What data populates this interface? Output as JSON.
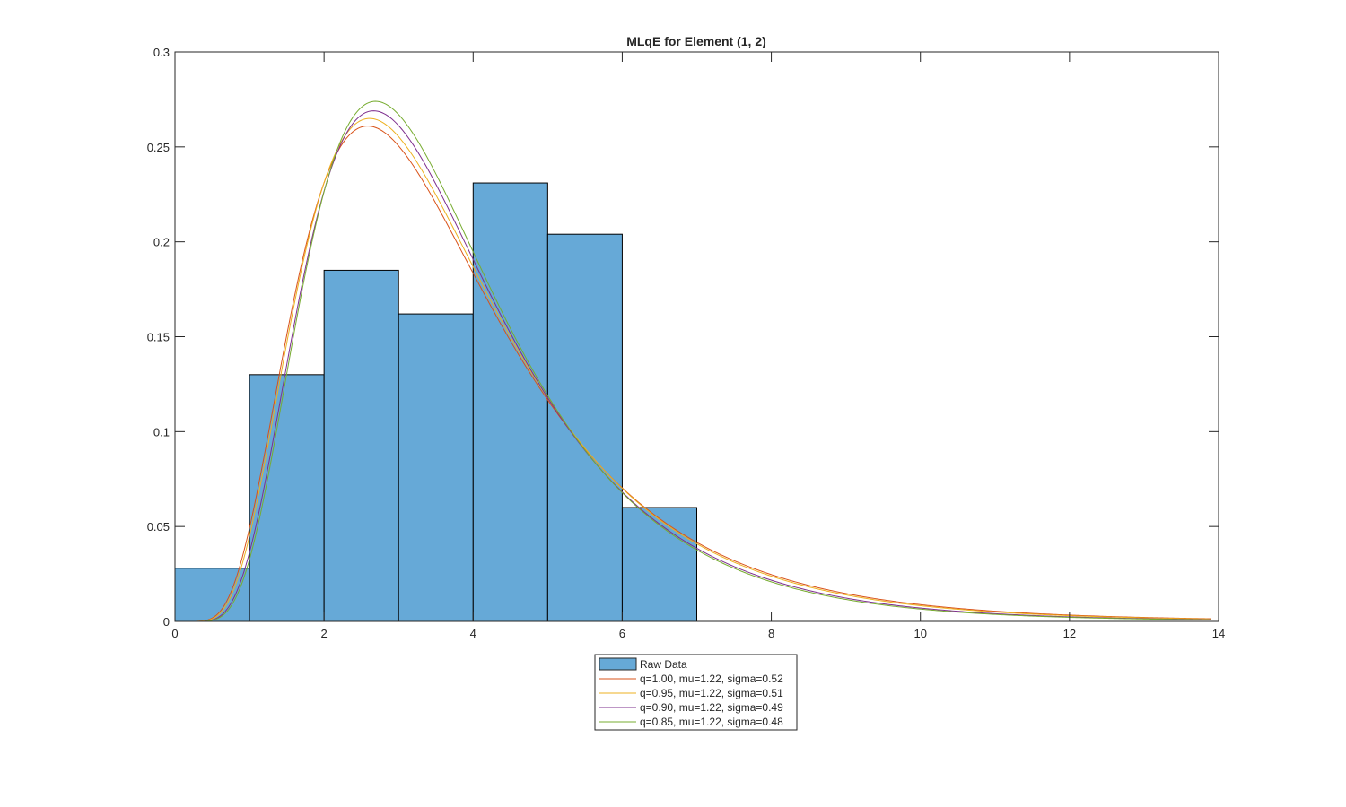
{
  "chart_data": {
    "type": "bar",
    "title": "MLqE for Element (1, 2)",
    "xlabel": "",
    "ylabel": "",
    "xlim": [
      0,
      14
    ],
    "ylim": [
      0,
      0.3
    ],
    "xticks": [
      "0",
      "2",
      "4",
      "6",
      "8",
      "10",
      "12",
      "14"
    ],
    "xtick_values": [
      0,
      2,
      4,
      6,
      8,
      10,
      12,
      14
    ],
    "yticks": [
      "0",
      "0.05",
      "0.1",
      "0.15",
      "0.2",
      "0.25",
      "0.3"
    ],
    "ytick_values": [
      0,
      0.05,
      0.1,
      0.15,
      0.2,
      0.25,
      0.3
    ],
    "grid": false,
    "legend_position": "bottom-outside",
    "histogram": {
      "name": "Raw Data",
      "color": "#66a9d7",
      "bin_edges": [
        0,
        1,
        2,
        3,
        4,
        5,
        6,
        7
      ],
      "values": [
        0.028,
        0.13,
        0.185,
        0.162,
        0.231,
        0.204,
        0.06
      ]
    },
    "series": [
      {
        "name": "q=1.00, mu=1.22, sigma=0.52",
        "type": "line",
        "color": "#d95319",
        "mu": 1.22,
        "sigma": 0.52,
        "peak": 0.261
      },
      {
        "name": "q=0.95, mu=1.22, sigma=0.51",
        "type": "line",
        "color": "#edb120",
        "mu": 1.22,
        "sigma": 0.51,
        "peak": 0.265
      },
      {
        "name": "q=0.90, mu=1.22, sigma=0.49",
        "type": "line",
        "color": "#7e2f8e",
        "mu": 1.22,
        "sigma": 0.49,
        "peak": 0.269
      },
      {
        "name": "q=0.85, mu=1.22, sigma=0.48",
        "type": "line",
        "color": "#77ac30",
        "mu": 1.22,
        "sigma": 0.48,
        "peak": 0.274
      }
    ],
    "curve_x_range": [
      0,
      13.9
    ]
  }
}
